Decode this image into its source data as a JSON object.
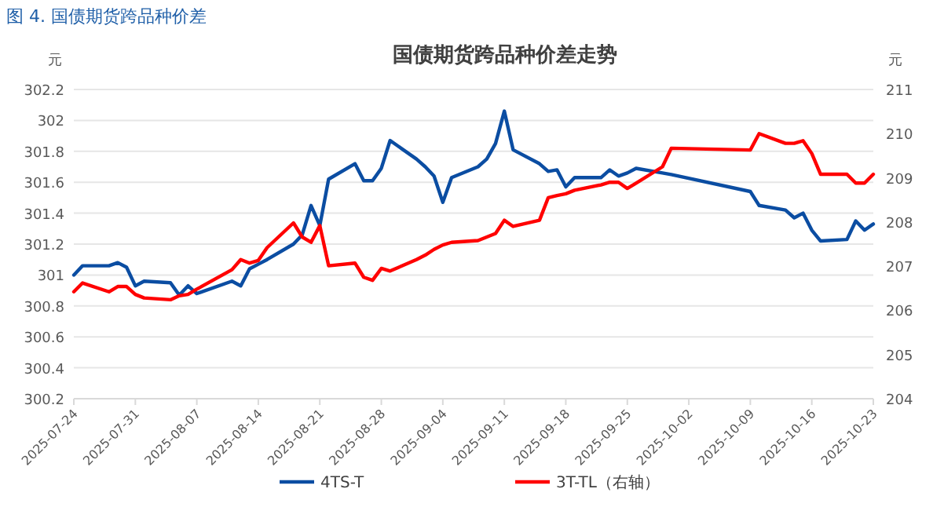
{
  "chart_data": {
    "type": "line",
    "title": "国债期货跨品种价差走势",
    "annotations": [
      "图 4.  国债期货跨品种价差"
    ],
    "ylabel": "元",
    "y2label": "元",
    "x": [
      "2025-07-24",
      "2025-07-25",
      "2025-07-28",
      "2025-07-29",
      "2025-07-30",
      "2025-07-31",
      "2025-08-01",
      "2025-08-04",
      "2025-08-05",
      "2025-08-06",
      "2025-08-07",
      "2025-08-11",
      "2025-08-12",
      "2025-08-13",
      "2025-08-14",
      "2025-08-15",
      "2025-08-18",
      "2025-08-19",
      "2025-08-20",
      "2025-08-21",
      "2025-08-22",
      "2025-08-25",
      "2025-08-26",
      "2025-08-27",
      "2025-08-28",
      "2025-08-29",
      "2025-09-01",
      "2025-09-02",
      "2025-09-03",
      "2025-09-04",
      "2025-09-05",
      "2025-09-08",
      "2025-09-09",
      "2025-09-10",
      "2025-09-11",
      "2025-09-12",
      "2025-09-15",
      "2025-09-16",
      "2025-09-17",
      "2025-09-18",
      "2025-09-19",
      "2025-09-22",
      "2025-09-23",
      "2025-09-24",
      "2025-09-25",
      "2025-09-26",
      "2025-09-29",
      "2025-09-30",
      "2025-10-09",
      "2025-10-10",
      "2025-10-13",
      "2025-10-14",
      "2025-10-15",
      "2025-10-16",
      "2025-10-17",
      "2025-10-20",
      "2025-10-21",
      "2025-10-22",
      "2025-10-23"
    ],
    "series": [
      {
        "name": "4TS-T",
        "color": "#0b4da2",
        "values": [
          301.0,
          301.06,
          301.06,
          301.08,
          301.05,
          300.93,
          300.96,
          300.95,
          300.87,
          300.93,
          300.88,
          300.96,
          300.93,
          301.04,
          301.07,
          301.1,
          301.2,
          301.26,
          301.45,
          301.32,
          301.62,
          301.72,
          301.61,
          301.61,
          301.69,
          301.87,
          301.75,
          301.7,
          301.64,
          301.47,
          301.63,
          301.7,
          301.75,
          301.85,
          302.06,
          301.81,
          301.72,
          301.67,
          301.68,
          301.57,
          301.63,
          301.63,
          301.68,
          301.64,
          301.66,
          301.69,
          301.66,
          301.65,
          301.54,
          301.45,
          301.42,
          301.37,
          301.4,
          301.29,
          301.22,
          301.23,
          301.35,
          301.29,
          301.33
        ]
      },
      {
        "name": "3T-TL（右轴）",
        "color": "#ff0000",
        "axis": "y2",
        "values": [
          206.42,
          206.62,
          206.42,
          206.54,
          206.54,
          206.36,
          206.28,
          206.24,
          206.33,
          206.36,
          206.48,
          206.92,
          207.15,
          207.07,
          207.13,
          207.42,
          207.98,
          207.66,
          207.54,
          207.92,
          207.01,
          207.07,
          206.75,
          206.68,
          206.95,
          206.89,
          207.15,
          207.25,
          207.38,
          207.48,
          207.54,
          207.58,
          207.66,
          207.74,
          208.04,
          207.9,
          208.04,
          208.55,
          208.6,
          208.64,
          208.72,
          208.84,
          208.9,
          208.9,
          208.76,
          208.88,
          209.25,
          209.67,
          209.63,
          210.0,
          209.78,
          209.78,
          209.84,
          209.55,
          209.08,
          209.08,
          208.88,
          208.88,
          209.08
        ]
      }
    ],
    "xlim": [
      "2025-07-24",
      "2025-10-23"
    ],
    "xticks": [
      "2025-07-24",
      "2025-07-31",
      "2025-08-07",
      "2025-08-14",
      "2025-08-21",
      "2025-08-28",
      "2025-09-04",
      "2025-09-11",
      "2025-09-18",
      "2025-09-25",
      "2025-10-02",
      "2025-10-09",
      "2025-10-16",
      "2025-10-23"
    ],
    "ylim": [
      300.2,
      302.2
    ],
    "yticks": [
      300.2,
      300.4,
      300.6,
      300.8,
      301,
      301.2,
      301.4,
      301.6,
      301.8,
      302,
      302.2
    ],
    "y2lim": [
      204,
      211
    ],
    "y2ticks": [
      204,
      205,
      206,
      207,
      208,
      209,
      210,
      211
    ],
    "grid": "y",
    "legend": "bottom",
    "marker": "none",
    "line_style": "solid"
  }
}
